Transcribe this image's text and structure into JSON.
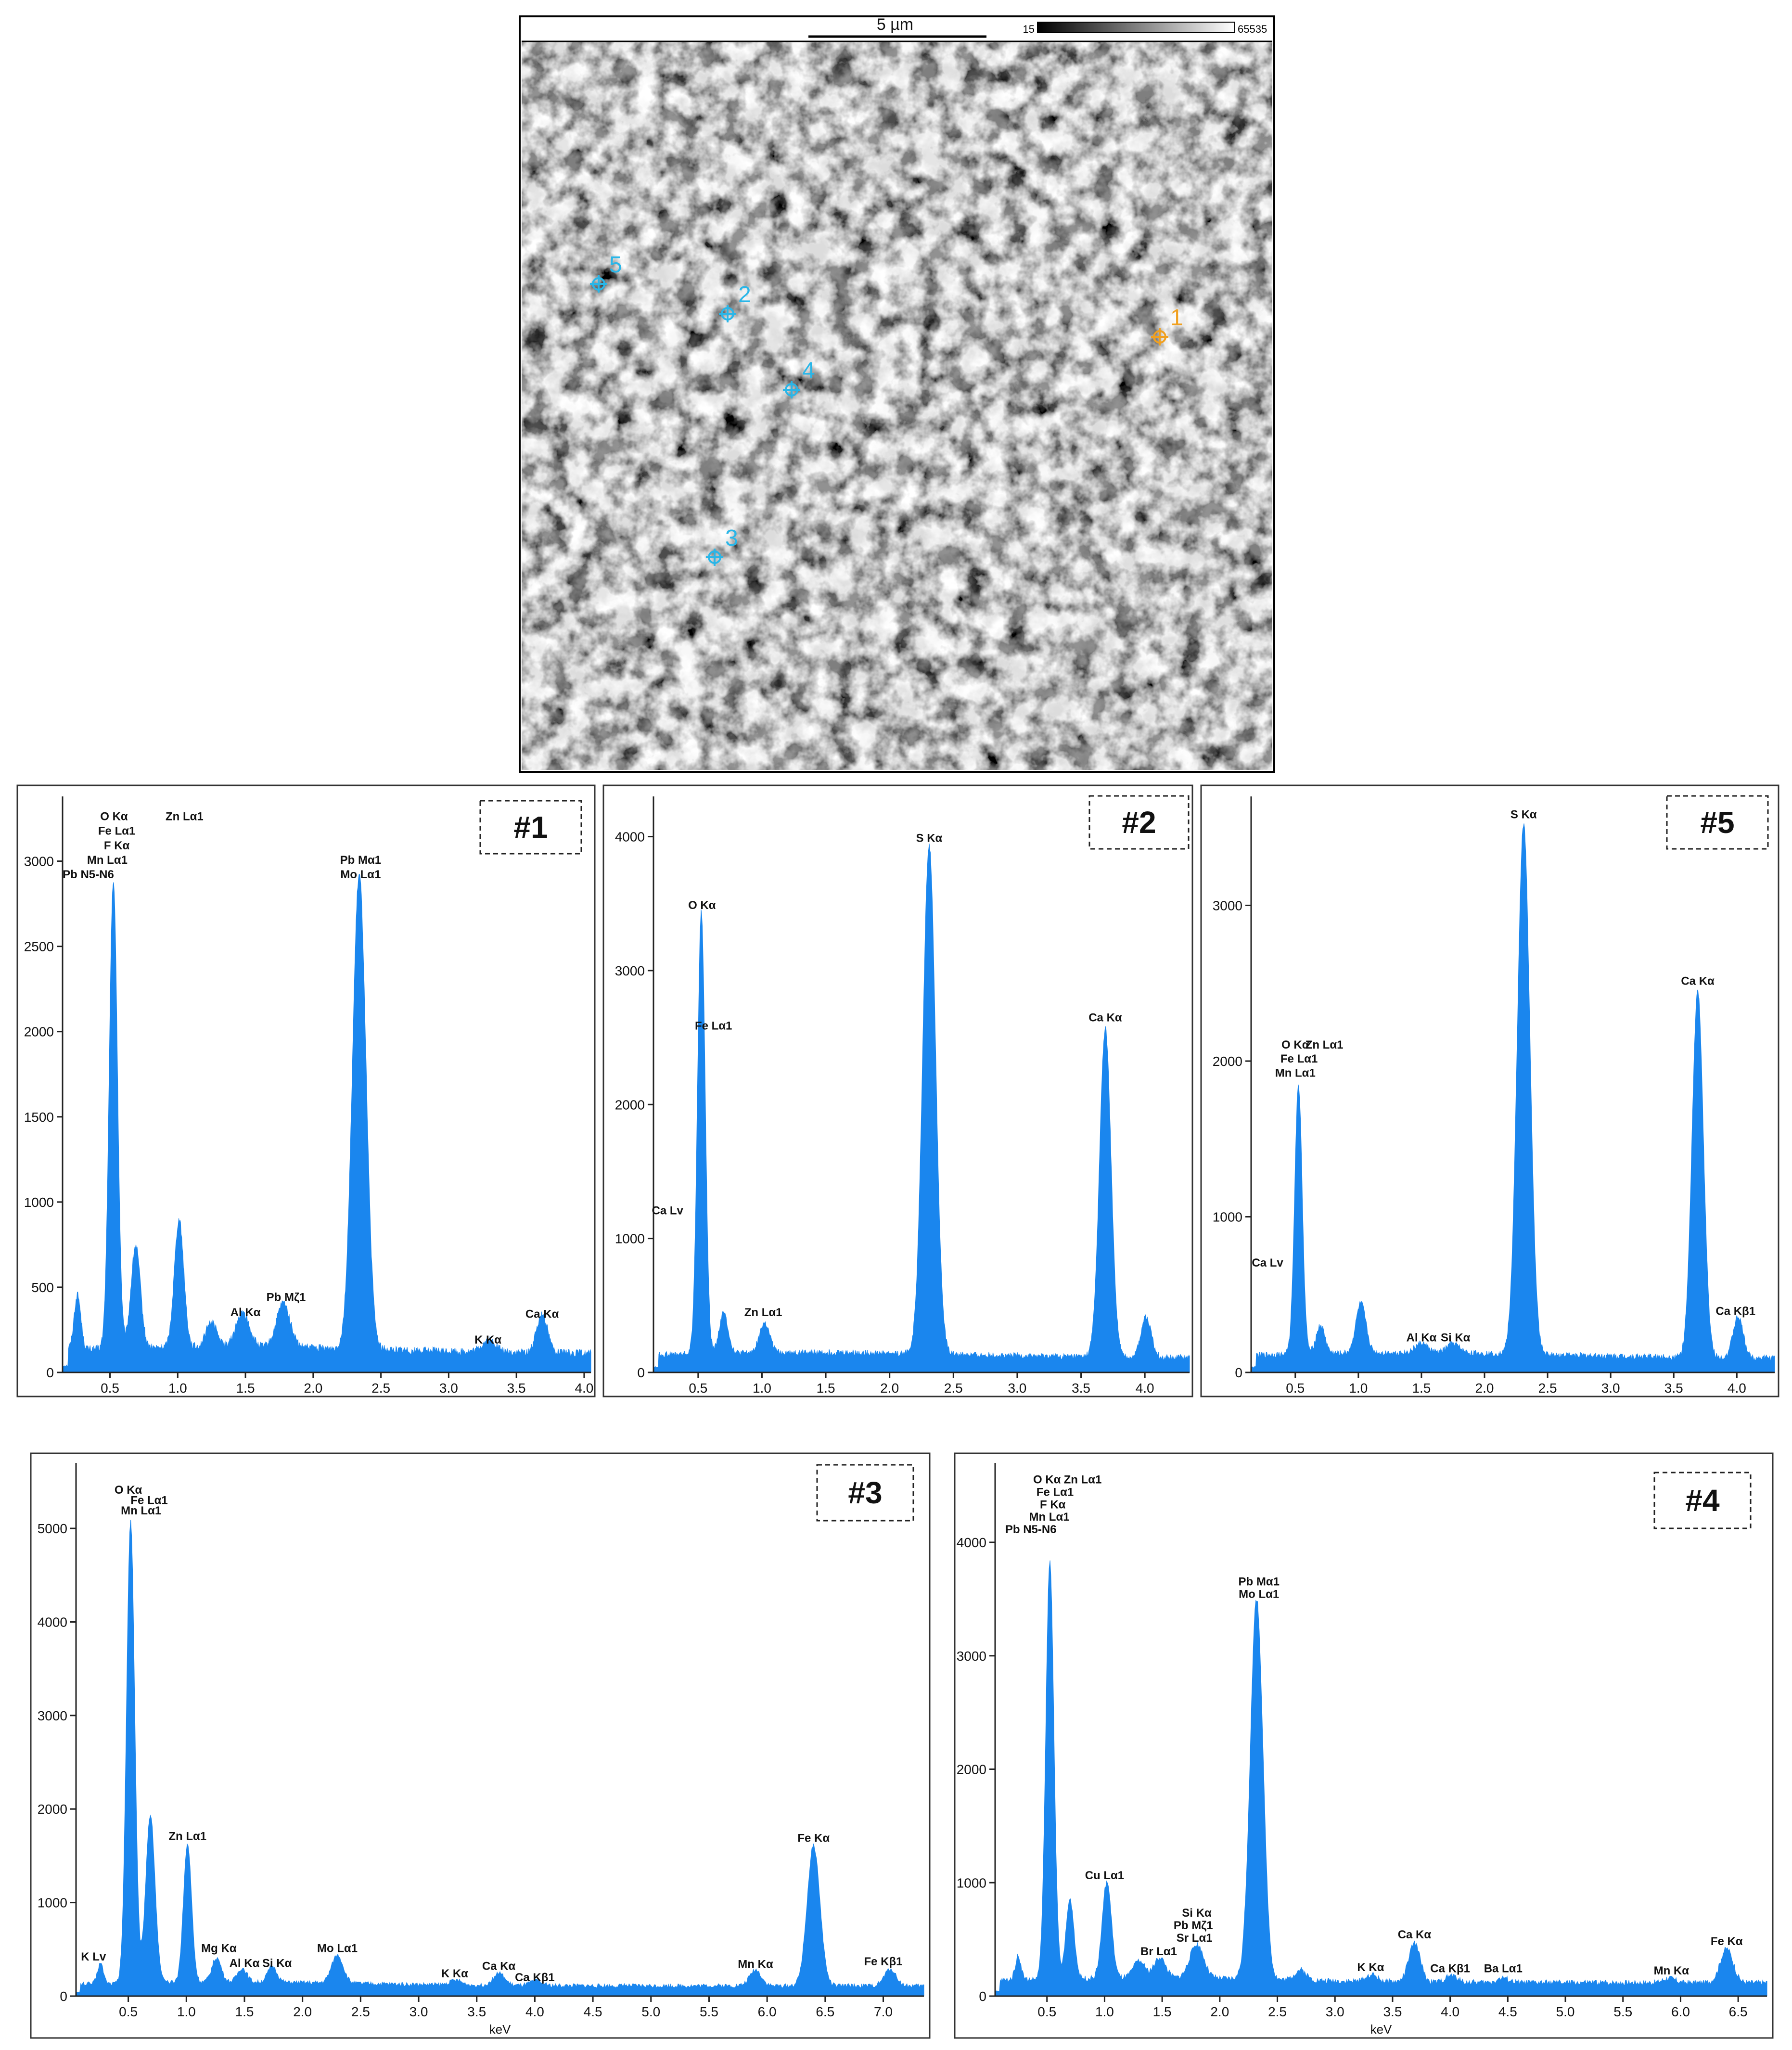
{
  "sem": {
    "scale_label": "5 µm",
    "gray_min": "15",
    "gray_max": "65535",
    "markers": [
      {
        "label": "1",
        "color": "#f0a020"
      },
      {
        "label": "2",
        "color": "#29b6e8"
      },
      {
        "label": "3",
        "color": "#29b6e8"
      },
      {
        "label": "4",
        "color": "#29b6e8"
      },
      {
        "label": "5",
        "color": "#29b6e8"
      }
    ]
  },
  "fill_color": "#1a86ee",
  "chart_data": [
    {
      "type": "area",
      "id": "#1",
      "xlim": [
        0.15,
        4.05
      ],
      "ylim": [
        0,
        3380
      ],
      "xticks": [
        "0.5",
        "1.0",
        "1.5",
        "2.0",
        "2.5",
        "3.0",
        "3.5",
        "4.0"
      ],
      "xtick_values": [
        0.5,
        1.0,
        1.5,
        2.0,
        2.5,
        3.0,
        3.5,
        4.0
      ],
      "yticks": [
        "500",
        "1000",
        "1500",
        "2000",
        "2500",
        "3000"
      ],
      "ytick_values": [
        500,
        1000,
        1500,
        2000,
        2500,
        3000
      ],
      "xlabel": "",
      "baseline": 130,
      "peaks": [
        [
          0.26,
          320,
          0.025
        ],
        [
          0.525,
          2750,
          0.03
        ],
        [
          0.69,
          600,
          0.035
        ],
        [
          1.01,
          750,
          0.035
        ],
        [
          1.25,
          150,
          0.04
        ],
        [
          1.48,
          200,
          0.05
        ],
        [
          1.78,
          260,
          0.05
        ],
        [
          2.34,
          2780,
          0.05
        ],
        [
          3.3,
          70,
          0.05
        ],
        [
          3.69,
          230,
          0.04
        ]
      ],
      "labels": [
        {
          "x": 0.53,
          "y": 3240,
          "text": "O Kα"
        },
        {
          "x": 1.05,
          "y": 3240,
          "text": "Zn Lα1"
        },
        {
          "x": 0.55,
          "y": 3155,
          "text": "Fe Lα1"
        },
        {
          "x": 0.55,
          "y": 3070,
          "text": "F Kα"
        },
        {
          "x": 0.48,
          "y": 2985,
          "text": "Mn Lα1"
        },
        {
          "x": 0.34,
          "y": 2900,
          "text": "Pb N5-N6"
        },
        {
          "x": 2.35,
          "y": 2985,
          "text": "Pb Mα1"
        },
        {
          "x": 2.35,
          "y": 2900,
          "text": "Mo Lα1"
        },
        {
          "x": 1.5,
          "y": 330,
          "text": "Al Kα"
        },
        {
          "x": 1.8,
          "y": 420,
          "text": "Pb Mζ1"
        },
        {
          "x": 3.29,
          "y": 170,
          "text": "K Kα"
        },
        {
          "x": 3.69,
          "y": 320,
          "text": "Ca Kα"
        }
      ]
    },
    {
      "type": "area",
      "id": "#2",
      "xlim": [
        0.15,
        4.35
      ],
      "ylim": [
        0,
        4300
      ],
      "xticks": [
        "0.5",
        "1.0",
        "1.5",
        "2.0",
        "2.5",
        "3.0",
        "3.5",
        "4.0"
      ],
      "xtick_values": [
        0.5,
        1.0,
        1.5,
        2.0,
        2.5,
        3.0,
        3.5,
        4.0
      ],
      "yticks": [
        "1000",
        "2000",
        "3000",
        "4000"
      ],
      "ytick_values": [
        1000,
        2000,
        3000,
        4000
      ],
      "xlabel": "",
      "baseline": 130,
      "peaks": [
        [
          0.525,
          3300,
          0.03
        ],
        [
          0.7,
          300,
          0.035
        ],
        [
          1.02,
          220,
          0.04
        ],
        [
          2.31,
          3800,
          0.05
        ],
        [
          3.69,
          2450,
          0.045
        ],
        [
          4.01,
          300,
          0.04
        ]
      ],
      "labels": [
        {
          "x": 0.53,
          "y": 3460,
          "text": "O Kα"
        },
        {
          "x": 0.62,
          "y": 2560,
          "text": "Fe Lα1"
        },
        {
          "x": 0.26,
          "y": 1180,
          "text": "Ca Lv"
        },
        {
          "x": 1.01,
          "y": 420,
          "text": "Zn Lα1"
        },
        {
          "x": 2.31,
          "y": 3960,
          "text": "S Kα"
        },
        {
          "x": 3.69,
          "y": 2620,
          "text": "Ca Kα"
        }
      ]
    },
    {
      "type": "area",
      "id": "#5",
      "xlim": [
        0.15,
        4.3
      ],
      "ylim": [
        0,
        3700
      ],
      "xticks": [
        "0.5",
        "1.0",
        "1.5",
        "2.0",
        "2.5",
        "3.0",
        "3.5",
        "4.0"
      ],
      "xtick_values": [
        0.5,
        1.0,
        1.5,
        2.0,
        2.5,
        3.0,
        3.5,
        4.0
      ],
      "yticks": [
        "1000",
        "2000",
        "3000"
      ],
      "ytick_values": [
        1000,
        2000,
        3000
      ],
      "xlabel": "",
      "baseline": 110,
      "peaks": [
        [
          0.525,
          1730,
          0.03
        ],
        [
          0.7,
          180,
          0.035
        ],
        [
          1.02,
          320,
          0.04
        ],
        [
          1.5,
          60,
          0.05
        ],
        [
          1.75,
          60,
          0.05
        ],
        [
          2.31,
          3400,
          0.05
        ],
        [
          3.69,
          2350,
          0.045
        ],
        [
          4.01,
          260,
          0.04
        ]
      ],
      "labels": [
        {
          "x": 0.5,
          "y": 2080,
          "text": "O Kα"
        },
        {
          "x": 0.73,
          "y": 2080,
          "text": "Zn Lα1"
        },
        {
          "x": 0.53,
          "y": 1990,
          "text": "Fe Lα1"
        },
        {
          "x": 0.5,
          "y": 1900,
          "text": "Mn Lα1"
        },
        {
          "x": 0.28,
          "y": 680,
          "text": "Ca Lv"
        },
        {
          "x": 1.5,
          "y": 200,
          "text": "Al Kα"
        },
        {
          "x": 1.77,
          "y": 200,
          "text": "Si Kα"
        },
        {
          "x": 2.31,
          "y": 3560,
          "text": "S Kα"
        },
        {
          "x": 3.69,
          "y": 2490,
          "text": "Ca Kα"
        },
        {
          "x": 3.99,
          "y": 370,
          "text": "Ca Kβ1"
        }
      ]
    },
    {
      "type": "area",
      "id": "#3",
      "xlim": [
        0.05,
        7.35
      ],
      "ylim": [
        0,
        5700
      ],
      "xticks": [
        "0.5",
        "1.0",
        "1.5",
        "2.0",
        "2.5",
        "3.0",
        "3.5",
        "4.0",
        "4.5",
        "5.0",
        "5.5",
        "6.0",
        "6.5",
        "7.0"
      ],
      "xtick_values": [
        0.5,
        1.0,
        1.5,
        2.0,
        2.5,
        3.0,
        3.5,
        4.0,
        4.5,
        5.0,
        5.5,
        6.0,
        6.5,
        7.0
      ],
      "yticks": [
        "1000",
        "2000",
        "3000",
        "4000",
        "5000"
      ],
      "ytick_values": [
        1000,
        2000,
        3000,
        4000,
        5000
      ],
      "xlabel": "keV",
      "baseline": 130,
      "peaks": [
        [
          0.26,
          220,
          0.025
        ],
        [
          0.52,
          4950,
          0.035
        ],
        [
          0.69,
          1800,
          0.04
        ],
        [
          1.01,
          1480,
          0.035
        ],
        [
          1.26,
          260,
          0.04
        ],
        [
          1.48,
          150,
          0.04
        ],
        [
          1.74,
          170,
          0.04
        ],
        [
          2.3,
          300,
          0.05
        ],
        [
          3.32,
          50,
          0.05
        ],
        [
          3.69,
          130,
          0.05
        ],
        [
          4.01,
          50,
          0.05
        ],
        [
          5.9,
          170,
          0.05
        ],
        [
          6.4,
          1500,
          0.055
        ],
        [
          7.06,
          180,
          0.05
        ]
      ],
      "labels": [
        {
          "x": 0.5,
          "y": 5370,
          "text": "O Kα"
        },
        {
          "x": 0.68,
          "y": 5260,
          "text": "Fe Lα1"
        },
        {
          "x": 0.61,
          "y": 5150,
          "text": "Mn Lα1"
        },
        {
          "x": 1.01,
          "y": 1670,
          "text": "Zn Lα1"
        },
        {
          "x": 0.2,
          "y": 380,
          "text": "K Lv"
        },
        {
          "x": 1.28,
          "y": 470,
          "text": "Mg Kα"
        },
        {
          "x": 1.5,
          "y": 310,
          "text": "Al Kα"
        },
        {
          "x": 1.78,
          "y": 310,
          "text": "Si Kα"
        },
        {
          "x": 2.3,
          "y": 470,
          "text": "Mo Lα1"
        },
        {
          "x": 3.31,
          "y": 200,
          "text": "K Kα"
        },
        {
          "x": 3.69,
          "y": 280,
          "text": "Ca Kα"
        },
        {
          "x": 4.0,
          "y": 160,
          "text": "Ca Kβ1"
        },
        {
          "x": 5.9,
          "y": 300,
          "text": "Mn Kα"
        },
        {
          "x": 6.4,
          "y": 1650,
          "text": "Fe Kα"
        },
        {
          "x": 7.0,
          "y": 330,
          "text": "Fe Kβ1"
        }
      ]
    },
    {
      "type": "area",
      "id": "#4",
      "xlim": [
        0.05,
        6.75
      ],
      "ylim": [
        0,
        4700
      ],
      "xticks": [
        "0.5",
        "1.0",
        "1.5",
        "2.0",
        "2.5",
        "3.0",
        "3.5",
        "4.0",
        "4.5",
        "5.0",
        "5.5",
        "6.0",
        "6.5"
      ],
      "xtick_values": [
        0.5,
        1.0,
        1.5,
        2.0,
        2.5,
        3.0,
        3.5,
        4.0,
        4.5,
        5.0,
        5.5,
        6.0,
        6.5
      ],
      "yticks": [
        "1000",
        "2000",
        "3000",
        "4000"
      ],
      "ytick_values": [
        1000,
        2000,
        3000,
        4000
      ],
      "xlabel": "keV",
      "baseline": 140,
      "peaks": [
        [
          0.25,
          210,
          0.025
        ],
        [
          0.525,
          3680,
          0.035
        ],
        [
          0.7,
          700,
          0.035
        ],
        [
          1.02,
          850,
          0.04
        ],
        [
          1.3,
          150,
          0.05
        ],
        [
          1.48,
          180,
          0.05
        ],
        [
          1.8,
          300,
          0.06
        ],
        [
          2.32,
          3350,
          0.055
        ],
        [
          2.7,
          90,
          0.05
        ],
        [
          3.32,
          60,
          0.05
        ],
        [
          3.69,
          340,
          0.05
        ],
        [
          4.01,
          60,
          0.05
        ],
        [
          4.46,
          40,
          0.05
        ],
        [
          5.9,
          40,
          0.05
        ],
        [
          6.4,
          300,
          0.055
        ]
      ],
      "labels": [
        {
          "x": 0.5,
          "y": 4520,
          "text": "O Kα"
        },
        {
          "x": 0.81,
          "y": 4520,
          "text": "Zn Lα1"
        },
        {
          "x": 0.57,
          "y": 4410,
          "text": "Fe Lα1"
        },
        {
          "x": 0.55,
          "y": 4300,
          "text": "F Kα"
        },
        {
          "x": 0.52,
          "y": 4190,
          "text": "Mn Lα1"
        },
        {
          "x": 0.36,
          "y": 4080,
          "text": "Pb N5-N6"
        },
        {
          "x": 2.34,
          "y": 3620,
          "text": "Pb Mα1"
        },
        {
          "x": 2.34,
          "y": 3510,
          "text": "Mo Lα1"
        },
        {
          "x": 1.0,
          "y": 1030,
          "text": "Cu Lα1"
        },
        {
          "x": 1.47,
          "y": 360,
          "text": "Br Lα1"
        },
        {
          "x": 1.8,
          "y": 700,
          "text": "Si Kα"
        },
        {
          "x": 1.77,
          "y": 590,
          "text": "Pb Mζ1"
        },
        {
          "x": 1.78,
          "y": 480,
          "text": "Sr Lα1"
        },
        {
          "x": 3.31,
          "y": 220,
          "text": "K Kα"
        },
        {
          "x": 3.69,
          "y": 510,
          "text": "Ca Kα"
        },
        {
          "x": 4.0,
          "y": 210,
          "text": "Ca Kβ1"
        },
        {
          "x": 4.46,
          "y": 210,
          "text": "Ba Lα1"
        },
        {
          "x": 5.92,
          "y": 190,
          "text": "Mn Kα"
        },
        {
          "x": 6.4,
          "y": 450,
          "text": "Fe Kα"
        }
      ]
    }
  ]
}
